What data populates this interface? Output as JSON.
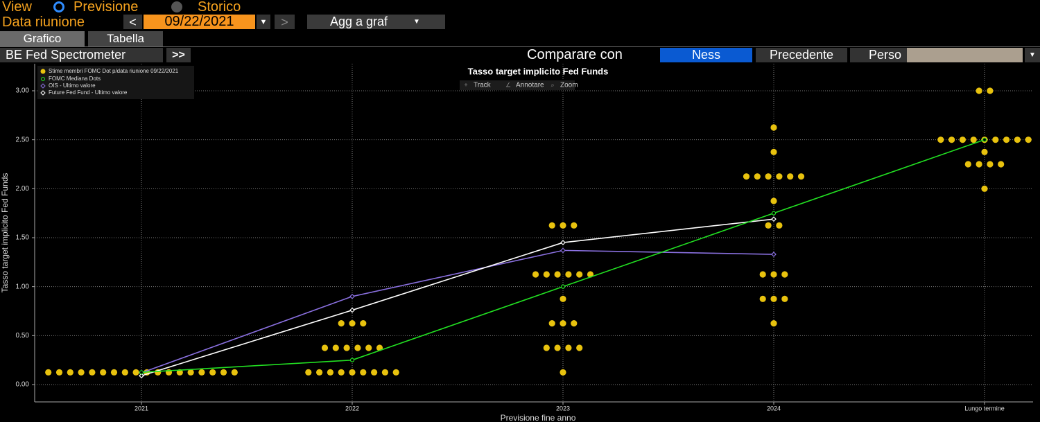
{
  "ui": {
    "view_label": "View",
    "radio": [
      "Previsione",
      "Storico"
    ],
    "date_label": "Data riunione",
    "date": "09/22/2021",
    "button": "Agg a graf",
    "tabs": [
      "Grafico",
      "Tabella"
    ],
    "panel": "BE Fed Spectrometer",
    "compare_label": "Comparare con",
    "compare_options": [
      "Ness",
      "Precedente",
      "Perso"
    ],
    "toolbar": [
      "Track",
      "Annotare",
      "Zoom"
    ]
  },
  "chart_data": {
    "type": "dotplot",
    "title": "Tasso target implicito Fed Funds",
    "y_label": "Tasso target implicito Fed Funds",
    "x_label": "Previsione fine anno",
    "categories": [
      "2021",
      "2022",
      "2023",
      "2024",
      "Lungo termine"
    ],
    "ylim": [
      -0.177,
      3.276
    ],
    "yticks": [
      {
        "value": 0,
        "label": "0.00"
      },
      {
        "value": 0.5,
        "label": "0.50"
      },
      {
        "value": 1,
        "label": "1.00"
      },
      {
        "value": 1.5,
        "label": "1.50"
      },
      {
        "value": 2,
        "label": "2.00"
      },
      {
        "value": 2.5,
        "label": "2.50"
      },
      {
        "value": 3,
        "label": "3.00"
      }
    ],
    "grid": true,
    "legend": "upper left",
    "dots": {
      "name": "Stime membri FOMC Dot p/data riunione 09/22/2021",
      "color": "#e8c20e",
      "values": [
        [
          0.125,
          0.125,
          0.125,
          0.125,
          0.125,
          0.125,
          0.125,
          0.125,
          0.125,
          0.125,
          0.125,
          0.125,
          0.125,
          0.125,
          0.125,
          0.125,
          0.125,
          0.125
        ],
        [
          0.125,
          0.125,
          0.125,
          0.125,
          0.125,
          0.125,
          0.125,
          0.125,
          0.125,
          0.375,
          0.375,
          0.375,
          0.375,
          0.375,
          0.375,
          0.625,
          0.625,
          0.625
        ],
        [
          0.125,
          0.375,
          0.375,
          0.375,
          0.375,
          0.625,
          0.625,
          0.625,
          0.875,
          1.125,
          1.125,
          1.125,
          1.125,
          1.125,
          1.125,
          1.625,
          1.625,
          1.625
        ],
        [
          0.625,
          0.875,
          0.875,
          0.875,
          1.125,
          1.125,
          1.125,
          1.625,
          1.625,
          1.875,
          2.125,
          2.125,
          2.125,
          2.125,
          2.125,
          2.125,
          2.375,
          2.625
        ],
        [
          2.0,
          2.25,
          2.25,
          2.25,
          2.25,
          2.375,
          2.5,
          2.5,
          2.5,
          2.5,
          2.5,
          2.5,
          2.5,
          2.5,
          2.5,
          3.0,
          3.0
        ]
      ]
    },
    "series": [
      {
        "name": "FOMC Mediana Dots",
        "color": "#22e022",
        "marker": "circle",
        "values": [
          0.125,
          0.25,
          1.0,
          1.75,
          2.5
        ]
      },
      {
        "name": "OIS - Ultimo valore",
        "color": "#8a70e0",
        "marker": "diamond",
        "values": [
          0.12,
          0.9,
          1.37,
          1.33,
          null
        ]
      },
      {
        "name": "Future Fed Fund - Ultimo valore",
        "color": "#ffffff",
        "marker": "diamond",
        "values": [
          0.09,
          0.76,
          1.45,
          1.69,
          null
        ]
      }
    ]
  }
}
